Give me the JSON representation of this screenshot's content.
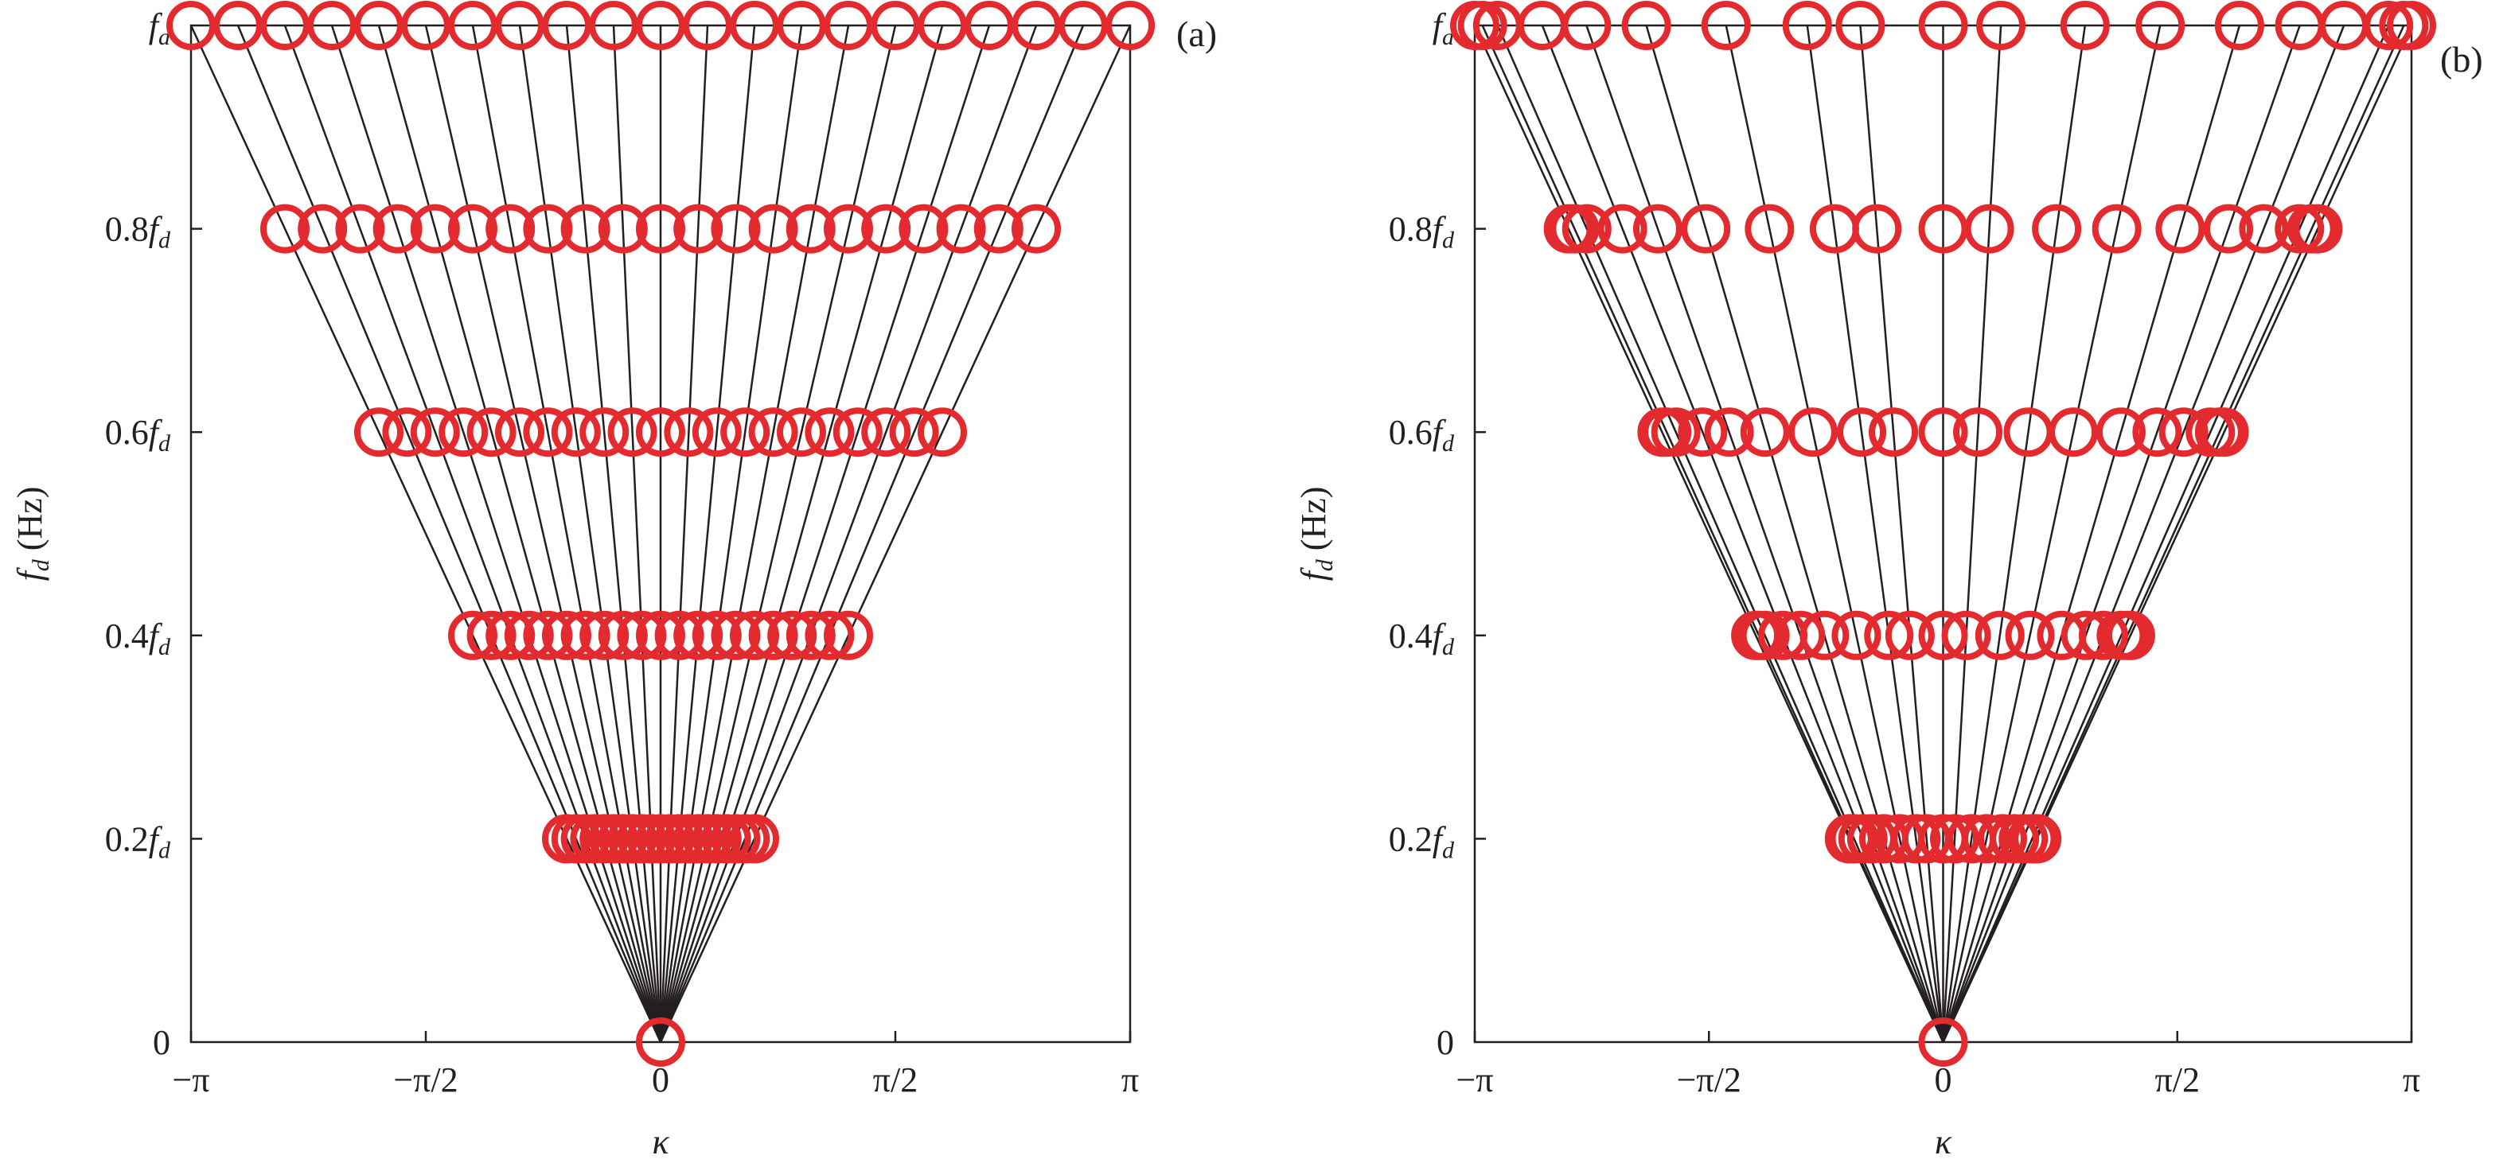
{
  "chart_data": [
    {
      "type": "scatter",
      "panel_label": "(a)",
      "xlabel": "κ",
      "ylabel": {
        "main": "f",
        "sub": "d",
        "unit": " (Hz)"
      },
      "xlim": [
        -3.14159,
        3.14159
      ],
      "ylim": [
        0,
        1
      ],
      "x_ticks": [
        {
          "value": -3.14159,
          "label": "−π"
        },
        {
          "value": -1.5708,
          "label": "−π/2"
        },
        {
          "value": 0,
          "label": "0"
        },
        {
          "value": 1.5708,
          "label": "π/2"
        },
        {
          "value": 3.14159,
          "label": "π"
        }
      ],
      "y_ticks": [
        {
          "value": 0,
          "num": "0",
          "f": "",
          "sub": ""
        },
        {
          "value": 0.2,
          "num": "0.2",
          "f": "f",
          "sub": "d"
        },
        {
          "value": 0.4,
          "num": "0.4",
          "f": "f",
          "sub": "d"
        },
        {
          "value": 0.6,
          "num": "0.6",
          "f": "f",
          "sub": "d"
        },
        {
          "value": 0.8,
          "num": "0.8",
          "f": "f",
          "sub": "d"
        },
        {
          "value": 1.0,
          "num": "",
          "f": "f",
          "sub": "d"
        }
      ],
      "marker_color": "#e32a2e",
      "line_color": "#231f20",
      "levels": [
        0.2,
        0.4,
        0.6,
        0.8,
        1.0
      ],
      "kappa_at_fd": [
        -3.1416,
        -2.8274,
        -2.5133,
        -2.1991,
        -1.885,
        -1.5708,
        -1.2566,
        -0.9425,
        -0.6283,
        -0.3142,
        0,
        0.3142,
        0.6283,
        0.9425,
        1.2566,
        1.5708,
        1.885,
        2.1991,
        2.5133,
        2.8274,
        3.1416
      ],
      "origin_point": [
        0,
        0
      ]
    },
    {
      "type": "scatter",
      "panel_label": "(b)",
      "xlabel": "κ",
      "ylabel": {
        "main": "f",
        "sub": "d",
        "unit": " (Hz)"
      },
      "xlim": [
        -3.14159,
        3.14159
      ],
      "ylim": [
        0,
        1
      ],
      "x_ticks": [
        {
          "value": -3.14159,
          "label": "−π"
        },
        {
          "value": -1.5708,
          "label": "−π/2"
        },
        {
          "value": 0,
          "label": "0"
        },
        {
          "value": 1.5708,
          "label": "π/2"
        },
        {
          "value": 3.14159,
          "label": "π"
        }
      ],
      "y_ticks": [
        {
          "value": 0,
          "num": "0",
          "f": "",
          "sub": ""
        },
        {
          "value": 0.2,
          "num": "0.2",
          "f": "f",
          "sub": "d"
        },
        {
          "value": 0.4,
          "num": "0.4",
          "f": "f",
          "sub": "d"
        },
        {
          "value": 0.6,
          "num": "0.6",
          "f": "f",
          "sub": "d"
        },
        {
          "value": 0.8,
          "num": "0.8",
          "f": "f",
          "sub": "d"
        },
        {
          "value": 1.0,
          "num": "",
          "f": "f",
          "sub": "d"
        }
      ],
      "marker_color": "#e32a2e",
      "line_color": "#231f20",
      "levels": [
        0.2,
        0.4,
        0.6,
        0.8,
        1.0
      ],
      "kappa_at_fd": [
        -3.1416,
        -3.0902,
        -2.9878,
        -2.6884,
        -2.3924,
        -1.9906,
        -1.4558,
        -0.9113,
        -0.5556,
        0,
        0.3875,
        0.9519,
        1.4558,
        1.988,
        2.3924,
        2.6884,
        2.9878,
        3.0902,
        3.1416
      ],
      "origin_point": [
        0,
        0
      ]
    }
  ]
}
